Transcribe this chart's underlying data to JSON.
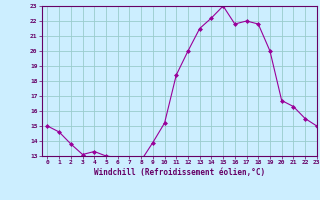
{
  "x": [
    0,
    1,
    2,
    3,
    4,
    5,
    6,
    7,
    8,
    9,
    10,
    11,
    12,
    13,
    14,
    15,
    16,
    17,
    18,
    19,
    20,
    21,
    22,
    23
  ],
  "y": [
    15.0,
    14.6,
    13.8,
    13.1,
    13.3,
    13.0,
    12.9,
    12.9,
    12.7,
    13.9,
    15.2,
    18.4,
    20.0,
    21.5,
    22.2,
    23.0,
    21.8,
    22.0,
    21.8,
    20.0,
    16.7,
    16.3,
    15.5,
    15.0
  ],
  "line_color": "#990099",
  "marker": "D",
  "marker_size": 2,
  "bg_color": "#cceeff",
  "grid_color": "#99cccc",
  "xlabel": "Windchill (Refroidissement éolien,°C)",
  "xlabel_color": "#660066",
  "tick_color": "#660066",
  "ylim": [
    13,
    23
  ],
  "xlim": [
    -0.5,
    23
  ],
  "yticks": [
    13,
    14,
    15,
    16,
    17,
    18,
    19,
    20,
    21,
    22,
    23
  ],
  "xticks": [
    0,
    1,
    2,
    3,
    4,
    5,
    6,
    7,
    8,
    9,
    10,
    11,
    12,
    13,
    14,
    15,
    16,
    17,
    18,
    19,
    20,
    21,
    22,
    23
  ]
}
